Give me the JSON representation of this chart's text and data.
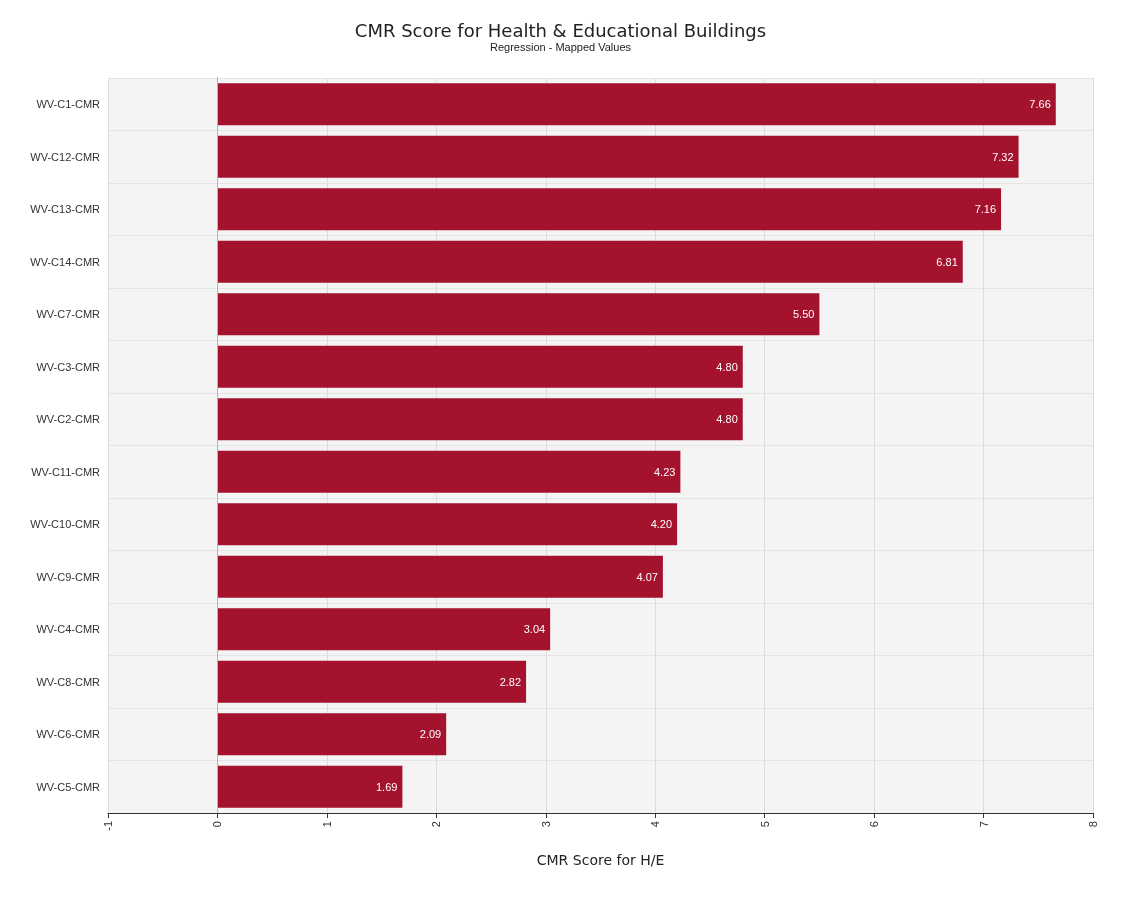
{
  "chart_data": {
    "type": "bar",
    "orientation": "horizontal",
    "title": "CMR Score for Health & Educational Buildings",
    "subtitle": "Regression - Mapped Values",
    "xlabel": "CMR Score for H/E",
    "categories": [
      "WV-C1-CMR",
      "WV-C12-CMR",
      "WV-C13-CMR",
      "WV-C14-CMR",
      "WV-C7-CMR",
      "WV-C3-CMR",
      "WV-C2-CMR",
      "WV-C11-CMR",
      "WV-C10-CMR",
      "WV-C9-CMR",
      "WV-C4-CMR",
      "WV-C8-CMR",
      "WV-C6-CMR",
      "WV-C5-CMR"
    ],
    "values": [
      7.66,
      7.32,
      7.16,
      6.81,
      5.5,
      4.8,
      4.8,
      4.23,
      4.2,
      4.07,
      3.04,
      2.82,
      2.09,
      1.69
    ],
    "value_labels": [
      "7.66",
      "7.32",
      "7.16",
      "6.81",
      "5.50",
      "4.80",
      "4.80",
      "4.23",
      "4.20",
      "4.07",
      "3.04",
      "2.82",
      "2.09",
      "1.69"
    ],
    "color": "#a5122e",
    "xlim": [
      -1,
      8
    ],
    "xticks": [
      -1,
      0,
      1,
      2,
      3,
      4,
      5,
      6,
      7,
      8
    ],
    "grid": true,
    "ref_lines": [
      {
        "axis": "x",
        "value": 0,
        "color": "#e8a0a8"
      }
    ]
  }
}
